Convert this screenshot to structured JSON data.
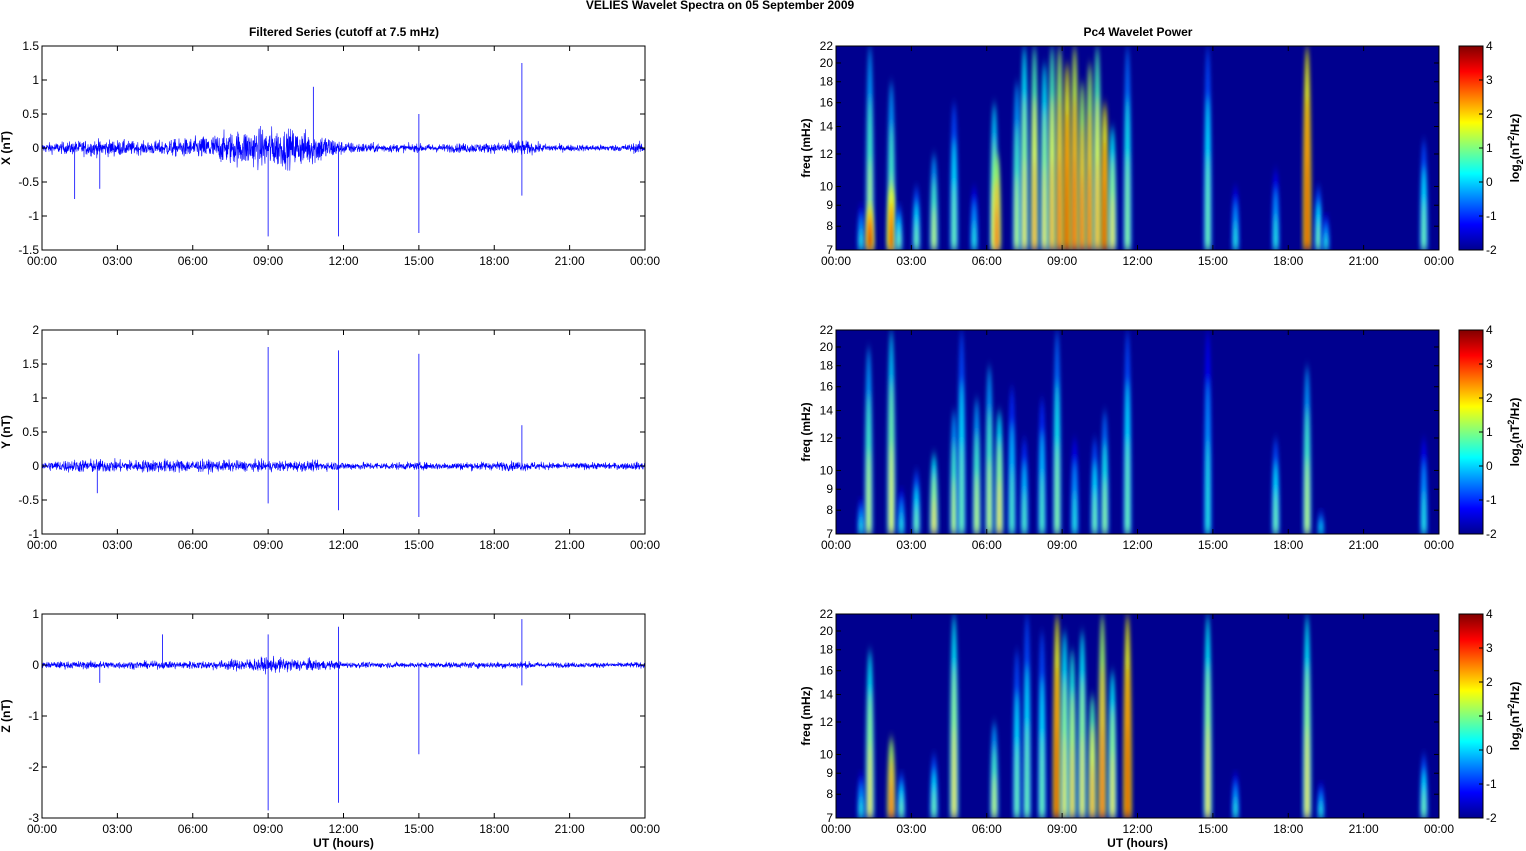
{
  "title": "VELIES Wavelet Spectra on 05 September 2009",
  "left_title": "Filtered Series (cutoff at 7.5 mHz)",
  "right_title": "Pc4 Wavelet Power",
  "colors": {
    "trace": "#0000ff",
    "background": "#00008f"
  },
  "chart_data": [
    {
      "type": "line",
      "name": "X",
      "ylabel": "X (nT)",
      "xlabel": "",
      "ylim": [
        -1.5,
        1.5
      ],
      "yticks": [
        "-1.5",
        "-1",
        "-0.5",
        "0",
        "0.5",
        "1",
        "1.5"
      ],
      "ytick_values": [
        -1.5,
        -1,
        -0.5,
        0,
        0.5,
        1,
        1.5
      ],
      "xticks": [
        "00:00",
        "03:00",
        "06:00",
        "09:00",
        "12:00",
        "15:00",
        "18:00",
        "21:00",
        "00:00"
      ],
      "xlim_hours": [
        0,
        24
      ],
      "envelope_by_hour": [
        0.12,
        0.15,
        0.2,
        0.2,
        0.15,
        0.2,
        0.25,
        0.35,
        0.45,
        0.5,
        0.45,
        0.4,
        0.15,
        0.12,
        0.1,
        0.1,
        0.1,
        0.12,
        0.12,
        0.2,
        0.1,
        0.08,
        0.08,
        0.08,
        0.15
      ],
      "spikes": [
        [
          1.3,
          -0.75
        ],
        [
          2.3,
          -0.6
        ],
        [
          9.0,
          -1.3
        ],
        [
          10.8,
          0.9
        ],
        [
          11.8,
          -1.3
        ],
        [
          15.0,
          -1.25
        ],
        [
          15.0,
          0.5
        ],
        [
          19.1,
          1.25
        ],
        [
          19.1,
          -0.7
        ]
      ]
    },
    {
      "type": "line",
      "name": "Y",
      "ylabel": "Y (nT)",
      "xlabel": "",
      "ylim": [
        -1,
        2
      ],
      "yticks": [
        "-1",
        "-0.5",
        "0",
        "0.5",
        "1",
        "1.5",
        "2"
      ],
      "ytick_values": [
        -1,
        -0.5,
        0,
        0.5,
        1,
        1.5,
        2
      ],
      "xticks": [
        "00:00",
        "03:00",
        "06:00",
        "09:00",
        "12:00",
        "15:00",
        "18:00",
        "21:00",
        "00:00"
      ],
      "xlim_hours": [
        0,
        24
      ],
      "envelope_by_hour": [
        0.1,
        0.15,
        0.17,
        0.15,
        0.15,
        0.17,
        0.15,
        0.14,
        0.13,
        0.13,
        0.13,
        0.12,
        0.1,
        0.09,
        0.09,
        0.09,
        0.09,
        0.1,
        0.1,
        0.12,
        0.09,
        0.08,
        0.08,
        0.08,
        0.1
      ],
      "spikes": [
        [
          2.2,
          -0.4
        ],
        [
          9.0,
          1.75
        ],
        [
          9.0,
          -0.55
        ],
        [
          11.8,
          1.7
        ],
        [
          11.8,
          -0.65
        ],
        [
          15.0,
          1.65
        ],
        [
          15.0,
          -0.75
        ],
        [
          19.1,
          0.6
        ]
      ]
    },
    {
      "type": "line",
      "name": "Z",
      "ylabel": "Z (nT)",
      "xlabel": "UT (hours)",
      "ylim": [
        -3,
        1
      ],
      "yticks": [
        "-3",
        "-2",
        "-1",
        "0",
        "1"
      ],
      "ytick_values": [
        -3,
        -2,
        -1,
        0,
        1
      ],
      "xticks": [
        "00:00",
        "03:00",
        "06:00",
        "09:00",
        "12:00",
        "15:00",
        "18:00",
        "21:00",
        "00:00"
      ],
      "xlim_hours": [
        0,
        24
      ],
      "envelope_by_hour": [
        0.1,
        0.12,
        0.13,
        0.12,
        0.12,
        0.12,
        0.13,
        0.15,
        0.2,
        0.25,
        0.22,
        0.18,
        0.1,
        0.09,
        0.09,
        0.09,
        0.09,
        0.1,
        0.1,
        0.12,
        0.09,
        0.08,
        0.08,
        0.08,
        0.1
      ],
      "spikes": [
        [
          2.3,
          -0.35
        ],
        [
          4.8,
          0.6
        ],
        [
          9.0,
          -2.85
        ],
        [
          9.0,
          0.6
        ],
        [
          11.8,
          -2.7
        ],
        [
          11.8,
          0.75
        ],
        [
          15.0,
          -1.75
        ],
        [
          19.1,
          0.9
        ],
        [
          19.1,
          -0.4
        ]
      ]
    },
    {
      "type": "heatmap",
      "name": "X power",
      "ylabel": "freq (mHz)",
      "xlabel": "",
      "ylim": [
        7,
        22
      ],
      "yscale": "log",
      "yticks": [
        "7",
        "8",
        "9",
        "10",
        "12",
        "14",
        "16",
        "18",
        "20",
        "22"
      ],
      "ytick_values": [
        7,
        8,
        9,
        10,
        12,
        14,
        16,
        18,
        20,
        22
      ],
      "xticks": [
        "00:00",
        "03:00",
        "06:00",
        "09:00",
        "12:00",
        "15:00",
        "18:00",
        "21:00",
        "00:00"
      ],
      "colorbar": {
        "label": "log2(nT2/Hz)",
        "range": [
          -2,
          4
        ],
        "ticks": [
          "-2",
          "-1",
          "0",
          "1",
          "2",
          "3",
          "4"
        ]
      },
      "bursts": [
        [
          1.0,
          9,
          0.5
        ],
        [
          1.35,
          22,
          1.5
        ],
        [
          1.35,
          9,
          3.8
        ],
        [
          2.2,
          18,
          1.5
        ],
        [
          2.2,
          10,
          3.5
        ],
        [
          2.5,
          9,
          1
        ],
        [
          3.2,
          10,
          1
        ],
        [
          3.9,
          12,
          1.5
        ],
        [
          4.7,
          16,
          1
        ],
        [
          5.5,
          10,
          0.5
        ],
        [
          6.3,
          16,
          1.8
        ],
        [
          6.4,
          12,
          3
        ],
        [
          7.2,
          18,
          1.5
        ],
        [
          7.5,
          22,
          2
        ],
        [
          7.9,
          22,
          2.5
        ],
        [
          8.3,
          20,
          2
        ],
        [
          8.6,
          22,
          2.5
        ],
        [
          8.9,
          22,
          3
        ],
        [
          9.2,
          20,
          3.5
        ],
        [
          9.5,
          22,
          3.2
        ],
        [
          9.8,
          18,
          3
        ],
        [
          10.1,
          20,
          3
        ],
        [
          10.4,
          22,
          2.5
        ],
        [
          10.7,
          16,
          3.5
        ],
        [
          11.0,
          14,
          2
        ],
        [
          11.6,
          22,
          1.2
        ],
        [
          14.8,
          22,
          1
        ],
        [
          15.9,
          10,
          0.5
        ],
        [
          17.5,
          11,
          0.5
        ],
        [
          18.75,
          22,
          3.5
        ],
        [
          19.2,
          10,
          1
        ],
        [
          19.5,
          8.5,
          0.5
        ],
        [
          23.4,
          13,
          1
        ]
      ]
    },
    {
      "type": "heatmap",
      "name": "Y power",
      "ylabel": "freq (mHz)",
      "xlabel": "",
      "ylim": [
        7,
        22
      ],
      "yscale": "log",
      "yticks": [
        "7",
        "8",
        "9",
        "10",
        "12",
        "14",
        "16",
        "18",
        "20",
        "22"
      ],
      "ytick_values": [
        7,
        8,
        9,
        10,
        12,
        14,
        16,
        18,
        20,
        22
      ],
      "xticks": [
        "00:00",
        "03:00",
        "06:00",
        "09:00",
        "12:00",
        "15:00",
        "18:00",
        "21:00",
        "00:00"
      ],
      "colorbar": {
        "label": "log2(nT2/Hz)",
        "range": [
          -2,
          4
        ],
        "ticks": [
          "-2",
          "-1",
          "0",
          "1",
          "2",
          "3",
          "4"
        ]
      },
      "bursts": [
        [
          1.0,
          8.5,
          0.5
        ],
        [
          1.3,
          20,
          1.5
        ],
        [
          2.2,
          22,
          1.8
        ],
        [
          2.6,
          9,
          0.5
        ],
        [
          3.2,
          10,
          1
        ],
        [
          3.9,
          11,
          2
        ],
        [
          4.7,
          14,
          1.5
        ],
        [
          5.0,
          22,
          1
        ],
        [
          5.6,
          15,
          1.5
        ],
        [
          6.1,
          18,
          1.5
        ],
        [
          6.5,
          14,
          2
        ],
        [
          7.0,
          16,
          0.8
        ],
        [
          7.5,
          12,
          0.8
        ],
        [
          8.2,
          15,
          0.8
        ],
        [
          8.8,
          22,
          1.2
        ],
        [
          9.5,
          12,
          0.5
        ],
        [
          10.3,
          12,
          1
        ],
        [
          10.7,
          14,
          1.2
        ],
        [
          11.6,
          22,
          1
        ],
        [
          14.8,
          22,
          0.5
        ],
        [
          17.5,
          12,
          1
        ],
        [
          18.75,
          18,
          1.5
        ],
        [
          19.3,
          8,
          0.3
        ],
        [
          23.4,
          12,
          0.5
        ]
      ]
    },
    {
      "type": "heatmap",
      "name": "Z power",
      "ylabel": "freq (mHz)",
      "xlabel": "UT (hours)",
      "ylim": [
        7,
        22
      ],
      "yscale": "log",
      "yticks": [
        "7",
        "8",
        "9",
        "10",
        "12",
        "14",
        "16",
        "18",
        "20",
        "22"
      ],
      "ytick_values": [
        7,
        8,
        9,
        10,
        12,
        14,
        16,
        18,
        20,
        22
      ],
      "xticks": [
        "00:00",
        "03:00",
        "06:00",
        "09:00",
        "12:00",
        "15:00",
        "18:00",
        "21:00",
        "00:00"
      ],
      "colorbar": {
        "label": "log2(nT2/Hz)",
        "range": [
          -2,
          4
        ],
        "ticks": [
          "-2",
          "-1",
          "0",
          "1",
          "2",
          "3",
          "4"
        ]
      },
      "bursts": [
        [
          1.0,
          9,
          0.5
        ],
        [
          1.35,
          18,
          2
        ],
        [
          2.2,
          11,
          3
        ],
        [
          2.6,
          9,
          1
        ],
        [
          3.9,
          10,
          1
        ],
        [
          4.7,
          22,
          2
        ],
        [
          6.3,
          12,
          1.5
        ],
        [
          7.2,
          18,
          1
        ],
        [
          7.6,
          22,
          1
        ],
        [
          8.2,
          20,
          1
        ],
        [
          8.8,
          22,
          3.5
        ],
        [
          9.1,
          20,
          2
        ],
        [
          9.4,
          18,
          2.2
        ],
        [
          9.8,
          20,
          2
        ],
        [
          10.2,
          14,
          2.5
        ],
        [
          10.6,
          22,
          3
        ],
        [
          11.0,
          16,
          2
        ],
        [
          11.6,
          22,
          3.5
        ],
        [
          14.8,
          22,
          2
        ],
        [
          15.9,
          9,
          0.5
        ],
        [
          18.75,
          22,
          2
        ],
        [
          19.3,
          8.5,
          0.5
        ],
        [
          23.4,
          10,
          1
        ]
      ]
    }
  ]
}
